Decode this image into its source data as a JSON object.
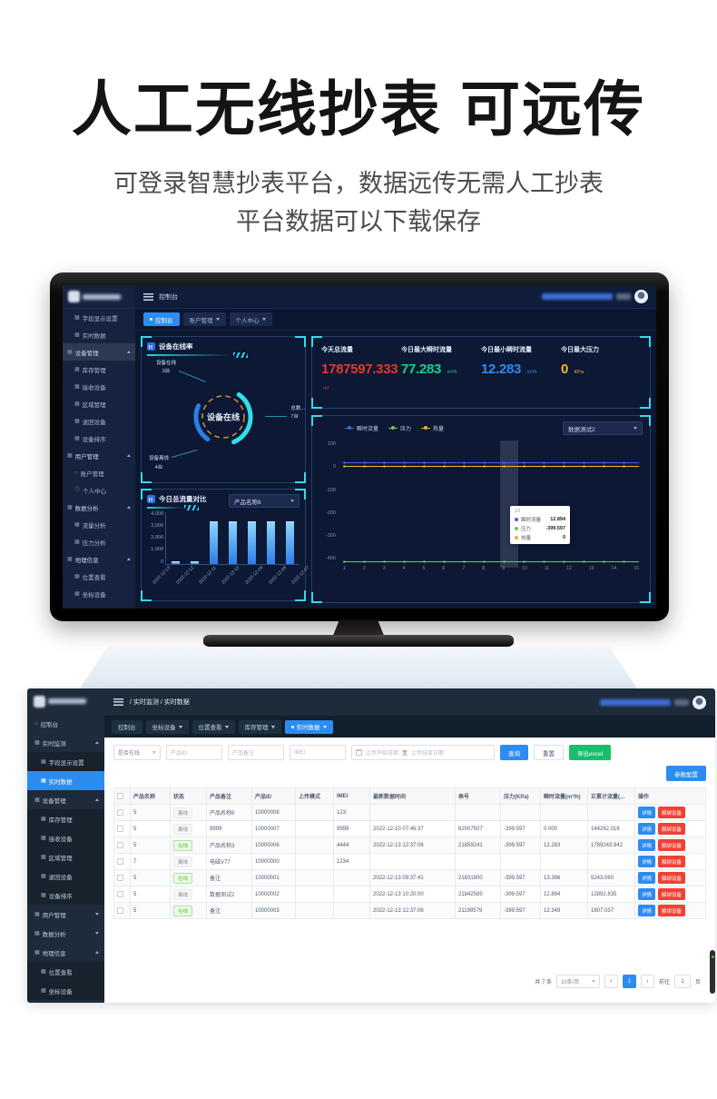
{
  "hero": {
    "title": "人工无线抄表 可远传",
    "subtitle_line1": "可登录智慧抄表平台，数据远传无需人工抄表",
    "subtitle_line2": "平台数据可以下载保存"
  },
  "tv": {
    "header": {
      "breadcrumb": "控制台"
    },
    "tabs": [
      {
        "label": "控制台",
        "active": true
      },
      {
        "label": "账户管理",
        "caret_down": true
      },
      {
        "label": "个人中心",
        "caret_down": true
      }
    ],
    "sidebar": {
      "items": [
        {
          "label": "字段显示设置",
          "glyph": "▦",
          "sub": true
        },
        {
          "label": "实时数据",
          "glyph": "▦",
          "sub": true
        },
        {
          "label": "设备管理",
          "glyph": "▦",
          "group": true,
          "hl": true,
          "caret_up": true
        },
        {
          "label": "库存管理",
          "glyph": "▦",
          "sub": true
        },
        {
          "label": "接收设备",
          "glyph": "▦",
          "sub": true
        },
        {
          "label": "区域管理",
          "glyph": "▦",
          "sub": true
        },
        {
          "label": "退回设备",
          "glyph": "▦",
          "sub": true
        },
        {
          "label": "设备排序",
          "glyph": "▦",
          "sub": true
        },
        {
          "label": "用户管理",
          "glyph": "▦",
          "group": true,
          "caret_up": true
        },
        {
          "label": "账户管理",
          "glyph": "○",
          "sub": true
        },
        {
          "label": "个人中心",
          "glyph": "ⓘ",
          "sub": true
        },
        {
          "label": "数据分析",
          "glyph": "▦",
          "group": true,
          "caret_up": true
        },
        {
          "label": "流量分析",
          "glyph": "▦",
          "sub": true
        },
        {
          "label": "压力分析",
          "glyph": "▦",
          "sub": true
        },
        {
          "label": "地理信息",
          "glyph": "▦",
          "group": true,
          "caret_up": true
        },
        {
          "label": "位置查看",
          "glyph": "▦",
          "sub": true
        },
        {
          "label": "坐标设备",
          "glyph": "▦",
          "sub": true
        }
      ]
    },
    "gauge": {
      "title": "设备在线率",
      "center_label": "设备在线",
      "online_label": "设备在线",
      "online_value": "3台",
      "offline_label": "设备离线",
      "offline_value": "4台",
      "total_label": "总数...",
      "total_value": "7台"
    },
    "stats": [
      {
        "label": "今天总流量",
        "value": "1787597.333",
        "unit": "m³",
        "color": "#e8372c"
      },
      {
        "label": "今日最大瞬时流量",
        "value": "77.283",
        "unit": "m³/h",
        "color": "#19d08a"
      },
      {
        "label": "今日最小瞬时流量",
        "value": "12.283",
        "unit": "m³/h",
        "color": "#2d8cf0"
      },
      {
        "label": "今日最大压力",
        "value": "0",
        "unit": "KPa",
        "color": "#f0b52c"
      }
    ],
    "bar_chart": {
      "type": "bar",
      "title": "今日总流量对比",
      "dropdown": "产品名称6",
      "ymax": 4000,
      "y_ticks": [
        "4,000",
        "3,000",
        "2,000",
        "1,000",
        "0"
      ],
      "categories": [
        "2022-12-13",
        "2022-12-12",
        "2022-12-11",
        "2022-12-10",
        "2022-12-09",
        "2022-12-08",
        "2022-12-07"
      ],
      "values": [
        200,
        200,
        3300,
        3300,
        3300,
        3300,
        3300
      ]
    },
    "line_chart": {
      "type": "line",
      "dropdown": "数据测试2",
      "legend": [
        {
          "label": "瞬时流量",
          "color": "#3f69e8"
        },
        {
          "label": "压力",
          "color": "#7ac84d"
        },
        {
          "label": "热量",
          "color": "#e8b339"
        }
      ],
      "y_ticks": [
        "100",
        "0",
        "-100",
        "-200",
        "-300",
        "-400"
      ],
      "x_ticks": [
        "1",
        "2",
        "3",
        "4",
        "5",
        "6",
        "7",
        "8",
        "9",
        "10",
        "11",
        "12",
        "13",
        "14",
        "15"
      ],
      "series": [
        {
          "name": "瞬时流量",
          "value": 12.894,
          "color": "#3f69e8"
        },
        {
          "name": "压力",
          "value": -399.597,
          "color": "#7ac84d"
        },
        {
          "name": "热量",
          "value": 0,
          "color": "#e8b339"
        }
      ],
      "tooltip": {
        "x": "10",
        "rows": [
          {
            "label": "瞬时流量",
            "value": "12.894",
            "color": "#3f69e8"
          },
          {
            "label": "压力",
            "value": "-399.597",
            "color": "#7ac84d"
          },
          {
            "label": "热量",
            "value": "0",
            "color": "#e8b339"
          }
        ]
      }
    }
  },
  "admin": {
    "breadcrumb": "/ 实时监测 / 实时数据",
    "sidebar": {
      "items": [
        {
          "label": "控制台",
          "glyph": "⌂"
        },
        {
          "label": "实时监测",
          "glyph": "▦",
          "group": true,
          "caret_up": true
        },
        {
          "label": "字段显示设置",
          "glyph": "▦",
          "sub": true
        },
        {
          "label": "实时数据",
          "glyph": "▦",
          "sub": true,
          "active": true
        },
        {
          "label": "设备管理",
          "glyph": "▦",
          "group": true,
          "caret_up": true
        },
        {
          "label": "库存管理",
          "glyph": "▦",
          "sub": true
        },
        {
          "label": "接收设备",
          "glyph": "▦",
          "sub": true
        },
        {
          "label": "区域管理",
          "glyph": "▦",
          "sub": true
        },
        {
          "label": "退回设备",
          "glyph": "▦",
          "sub": true
        },
        {
          "label": "设备排序",
          "glyph": "▦",
          "sub": true
        },
        {
          "label": "用户管理",
          "glyph": "▦",
          "group": true,
          "caret_down": true
        },
        {
          "label": "数据分析",
          "glyph": "▦",
          "group": true,
          "caret_down": true
        },
        {
          "label": "地理信息",
          "glyph": "▦",
          "group": true,
          "caret_up": true
        },
        {
          "label": "位置查看",
          "glyph": "▦",
          "sub": true
        },
        {
          "label": "坐标设备",
          "glyph": "▦",
          "sub": true
        }
      ]
    },
    "tabs": [
      {
        "label": "控制台"
      },
      {
        "label": "坐标设备",
        "caret_down": true
      },
      {
        "label": "位置查看",
        "caret_down": true
      },
      {
        "label": "库存管理",
        "caret_down": true
      },
      {
        "label": "实时数据",
        "caret_down": true,
        "active": true
      }
    ],
    "filters": {
      "online_select": "是否在线",
      "product_id_placeholder": "产品ID",
      "remark_placeholder": "产品备注",
      "imei_placeholder": "IMEI",
      "date_start_placeholder": "上传开始日期",
      "date_separator": "至",
      "date_end_placeholder": "上传结束日期",
      "search_button": "查询",
      "reset_button": "重置",
      "export_button": "导出excel",
      "param_button": "参数配置"
    },
    "table": {
      "headers": [
        "产品名称",
        "状态",
        "产品备注",
        "产品ID",
        "上传模式",
        "IMEI",
        "最新数据时间",
        "表号",
        "压力(KPa)",
        "瞬时流量(m³/h)",
        "正累计流量(...",
        "操作"
      ],
      "detail_button": "详情",
      "unbind_button": "解绑设备",
      "rows": [
        {
          "name": "5",
          "status": "离线",
          "online": false,
          "remark": "产品名称6",
          "pid": "10000008",
          "mode": "",
          "imei": "123",
          "time": "",
          "meter": "",
          "pressure": "",
          "flow": "",
          "total": ""
        },
        {
          "name": "5",
          "status": "离线",
          "online": false,
          "remark": "9999",
          "pid": "10000007",
          "mode": "",
          "imei": "9999",
          "time": "2022-12-10 07:46:37",
          "meter": "62007507",
          "pressure": "-399.597",
          "flow": "0.000",
          "total": "144262.016"
        },
        {
          "name": "5",
          "status": "在线",
          "online": true,
          "remark": "产品名称3",
          "pid": "10000006",
          "mode": "",
          "imei": "4444",
          "time": "2022-12-13 12:37:06",
          "meter": "21859241",
          "pressure": "-399.597",
          "flow": "12.283",
          "total": "1789243.942"
        },
        {
          "name": "7",
          "status": "离线",
          "online": false,
          "remark": "电磁V77",
          "pid": "10000000",
          "mode": "",
          "imei": "1234",
          "time": "",
          "meter": "",
          "pressure": "",
          "flow": "",
          "total": ""
        },
        {
          "name": "5",
          "status": "在线",
          "online": true,
          "remark": "备注",
          "pid": "10000001",
          "mode": "",
          "imei": "",
          "time": "2022-12-13 09:37:41",
          "meter": "21831800",
          "pressure": "-399.597",
          "flow": "13.396",
          "total": "5243.060"
        },
        {
          "name": "5",
          "status": "离线",
          "online": false,
          "remark": "数据测试2",
          "pid": "10000002",
          "mode": "",
          "imei": "",
          "time": "2022-12-13 10:20:00",
          "meter": "21842585",
          "pressure": "-399.597",
          "flow": "12.894",
          "total": "12892.835"
        },
        {
          "name": "5",
          "status": "在线",
          "online": true,
          "remark": "备注",
          "pid": "10000003",
          "mode": "",
          "imei": "",
          "time": "2022-12-13 12:37:06",
          "meter": "21199579",
          "pressure": "-399.597",
          "flow": "12.349",
          "total": "1807.037"
        }
      ]
    },
    "pagination": {
      "total": "共 7 条",
      "page_size": "10条/页",
      "prev": "‹",
      "page": "1",
      "next": "›",
      "goto_label": "前往",
      "goto_value": "1",
      "goto_suffix": "页"
    }
  }
}
